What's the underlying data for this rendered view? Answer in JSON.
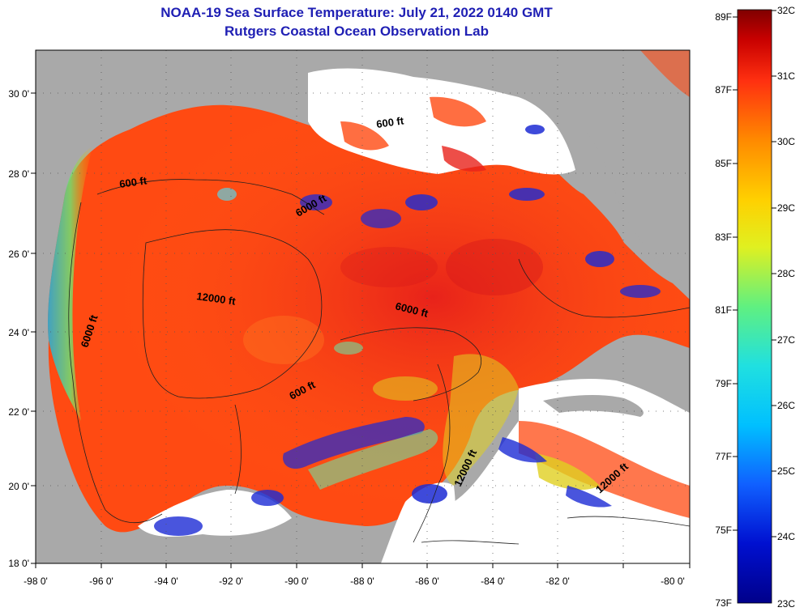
{
  "title_line1": "NOAA-19 Sea Surface Temperature:  July 21, 2022 0140 GMT",
  "title_line2": "Rutgers Coastal Ocean Observation Lab",
  "lon_ticks": [
    "-98 0'",
    "-96 0'",
    "-94 0'",
    "-92 0'",
    "-90 0'",
    "-88 0'",
    "-86 0'",
    "-84 0'",
    "-82 0'",
    "-80 0'"
  ],
  "lat_ticks": [
    "18 0'",
    "20 0'",
    "22 0'",
    "24 0'",
    "26 0'",
    "28 0'",
    "30 0'"
  ],
  "contour_labels": [
    "600 ft",
    "600 ft",
    "6000 ft",
    "12000 ft",
    "6000 ft",
    "6000 ft",
    "600 ft",
    "12000 ft",
    "12000 ft"
  ],
  "colorbar": {
    "fahrenheit": [
      "89F",
      "87F",
      "85F",
      "83F",
      "81F",
      "79F",
      "77F",
      "75F",
      "73F"
    ],
    "celsius": [
      "32C",
      "31C",
      "30C",
      "29C",
      "28C",
      "27C",
      "26C",
      "25C",
      "24C",
      "23C"
    ]
  },
  "colors": {
    "title": "#1f1fb4",
    "land": "#a9a9a9",
    "cloud": "#ffffff",
    "warm": "#ff4a12",
    "hot": "#e8221a",
    "cool": "#1c2ad4"
  }
}
